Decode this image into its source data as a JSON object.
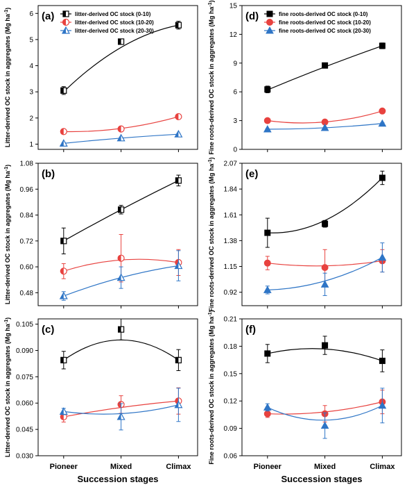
{
  "figure": {
    "x_title": "Succession stages",
    "x_categories": [
      "Pioneer",
      "Mixed",
      "Climax"
    ]
  },
  "chart_data": [
    {
      "panel": "(a)",
      "type": "line",
      "ylabel": "Litter-derived OC stock in aggregates (Mg ha⁻¹)",
      "ylim": [
        0.8,
        6.3
      ],
      "yticks": [
        1,
        2,
        3,
        4,
        5,
        6
      ],
      "categories": [
        "Pioneer",
        "Mixed",
        "Climax"
      ],
      "legend": "top-left",
      "marker_style": "open",
      "series": [
        {
          "name": "litter-derived OC stock (0-10)",
          "color": "#000000",
          "marker": "square",
          "values": [
            3.05,
            4.92,
            5.55
          ],
          "errors": [
            0.15,
            0.08,
            0.15
          ],
          "fit": [
            3.0,
            4.7,
            5.55
          ]
        },
        {
          "name": "litter-derived OC stock (10-20)",
          "color": "#e8423f",
          "marker": "circle",
          "values": [
            1.48,
            1.58,
            2.05
          ],
          "errors": [
            0.04,
            0.04,
            0.05
          ],
          "fit": [
            1.48,
            1.6,
            2.05
          ]
        },
        {
          "name": "litter-derived OC stock (20-30)",
          "color": "#2e75c6",
          "marker": "triangle",
          "values": [
            1.03,
            1.23,
            1.38
          ],
          "errors": [
            0.03,
            0.04,
            0.03
          ],
          "fit": [
            1.03,
            1.23,
            1.38
          ]
        }
      ]
    },
    {
      "panel": "(d)",
      "type": "line",
      "ylabel": "Fine roots-derived OC stock in aggregates (Mg ha⁻¹)",
      "ylim": [
        0,
        15
      ],
      "yticks": [
        0,
        3,
        6,
        9,
        12,
        15
      ],
      "categories": [
        "Pioneer",
        "Mixed",
        "Climax"
      ],
      "legend": "top-left",
      "marker_style": "filled",
      "series": [
        {
          "name": "fine roots-derived OC stock (0-10)",
          "color": "#000000",
          "marker": "square",
          "values": [
            6.25,
            8.75,
            10.8
          ],
          "errors": [
            0.35,
            0.15,
            0.3
          ],
          "fit": [
            6.2,
            8.6,
            10.8
          ]
        },
        {
          "name": "fine roots-derived OC stock (10-20)",
          "color": "#e8423f",
          "marker": "circle",
          "values": [
            3.0,
            2.85,
            4.0
          ],
          "errors": [
            0.08,
            0.08,
            0.1
          ],
          "fit": [
            3.0,
            2.85,
            4.0
          ]
        },
        {
          "name": "fine roots-derived OC stock (20-30)",
          "color": "#2e75c6",
          "marker": "triangle",
          "values": [
            2.1,
            2.25,
            2.7
          ],
          "errors": [
            0.05,
            0.05,
            0.08
          ],
          "fit": [
            2.1,
            2.25,
            2.7
          ]
        }
      ]
    },
    {
      "panel": "(b)",
      "type": "line",
      "ylabel": "Litter-derived OC stock in aggregates (Mg ha⁻¹)",
      "ylim": [
        0.42,
        1.08
      ],
      "yticks": [
        0.48,
        0.6,
        0.72,
        0.84,
        0.96,
        1.08
      ],
      "ytick_labels": [
        "0.48",
        "0.60",
        "0.72",
        "0.84",
        "0.96",
        "1.08"
      ],
      "categories": [
        "Pioneer",
        "Mixed",
        "Climax"
      ],
      "marker_style": "open",
      "series": [
        {
          "color": "#000000",
          "marker": "square",
          "values": [
            0.72,
            0.865,
            1.0
          ],
          "errors": [
            0.06,
            0.02,
            0.025
          ],
          "fit": [
            0.72,
            0.865,
            1.0
          ]
        },
        {
          "color": "#e8423f",
          "marker": "circle",
          "values": [
            0.58,
            0.64,
            0.62
          ],
          "errors": [
            0.035,
            0.11,
            0.06
          ],
          "fit": [
            0.58,
            0.632,
            0.62
          ]
        },
        {
          "color": "#2e75c6",
          "marker": "triangle",
          "values": [
            0.465,
            0.55,
            0.605
          ],
          "errors": [
            0.02,
            0.05,
            0.07
          ],
          "fit": [
            0.465,
            0.55,
            0.605
          ]
        }
      ]
    },
    {
      "panel": "(e)",
      "type": "line",
      "ylabel": "Fine roots-derived OC stock in aggregates (Mg ha⁻¹)",
      "ylim": [
        0.8,
        2.07
      ],
      "yticks": [
        0.92,
        1.15,
        1.38,
        1.61,
        1.84,
        2.07
      ],
      "ytick_labels": [
        "0.92",
        "1.15",
        "1.38",
        "1.61",
        "1.84",
        "2.07"
      ],
      "categories": [
        "Pioneer",
        "Mixed",
        "Climax"
      ],
      "marker_style": "filled",
      "series": [
        {
          "color": "#000000",
          "marker": "square",
          "values": [
            1.45,
            1.53,
            1.94
          ],
          "errors": [
            0.13,
            0.03,
            0.06
          ],
          "fit": [
            1.45,
            1.56,
            1.94
          ]
        },
        {
          "color": "#e8423f",
          "marker": "circle",
          "values": [
            1.18,
            1.14,
            1.2
          ],
          "errors": [
            0.06,
            0.16,
            0.1
          ],
          "fit": [
            1.18,
            1.155,
            1.2
          ]
        },
        {
          "color": "#2e75c6",
          "marker": "triangle",
          "values": [
            0.94,
            0.99,
            1.23
          ],
          "errors": [
            0.035,
            0.1,
            0.13
          ],
          "fit": [
            0.94,
            1.02,
            1.23
          ]
        }
      ]
    },
    {
      "panel": "(c)",
      "type": "line",
      "ylabel": "Litter-derived OC stock in aggregates (Mg ha⁻¹)",
      "ylim": [
        0.03,
        0.108
      ],
      "yticks": [
        0.03,
        0.045,
        0.06,
        0.075,
        0.09,
        0.105
      ],
      "ytick_labels": [
        "0.030",
        "0.045",
        "0.060",
        "0.075",
        "0.090",
        "0.105"
      ],
      "categories": [
        "Pioneer",
        "Mixed",
        "Climax"
      ],
      "marker_style": "open",
      "series": [
        {
          "color": "#000000",
          "marker": "square",
          "values": [
            0.0845,
            0.102,
            0.0845
          ],
          "errors": [
            0.005,
            0.006,
            0.006
          ],
          "fit": [
            0.0845,
            0.096,
            0.0845
          ]
        },
        {
          "color": "#e8423f",
          "marker": "circle",
          "values": [
            0.0522,
            0.0592,
            0.0612
          ],
          "errors": [
            0.003,
            0.005,
            0.0075
          ],
          "fit": [
            0.0522,
            0.0575,
            0.0612
          ]
        },
        {
          "color": "#2e75c6",
          "marker": "triangle",
          "values": [
            0.0552,
            0.0522,
            0.059
          ],
          "errors": [
            0.0018,
            0.0075,
            0.0095
          ],
          "fit": [
            0.0552,
            0.054,
            0.059
          ]
        }
      ]
    },
    {
      "panel": "(f)",
      "type": "line",
      "ylabel": "Fine roots-derived OC stock in aggregates (Mg ha⁻¹)",
      "ylim": [
        0.06,
        0.21
      ],
      "yticks": [
        0.06,
        0.09,
        0.12,
        0.15,
        0.18,
        0.21
      ],
      "ytick_labels": [
        "0.06",
        "0.09",
        "0.12",
        "0.15",
        "0.18",
        "0.21"
      ],
      "categories": [
        "Pioneer",
        "Mixed",
        "Climax"
      ],
      "marker_style": "filled",
      "series": [
        {
          "color": "#000000",
          "marker": "square",
          "values": [
            0.172,
            0.181,
            0.164
          ],
          "errors": [
            0.01,
            0.01,
            0.012
          ],
          "fit": [
            0.172,
            0.177,
            0.164
          ]
        },
        {
          "color": "#e8423f",
          "marker": "circle",
          "values": [
            0.106,
            0.106,
            0.119
          ],
          "errors": [
            0.004,
            0.009,
            0.013
          ],
          "fit": [
            0.106,
            0.108,
            0.119
          ]
        },
        {
          "color": "#2e75c6",
          "marker": "triangle",
          "values": [
            0.113,
            0.093,
            0.115
          ],
          "errors": [
            0.004,
            0.014,
            0.019
          ],
          "fit": [
            0.113,
            0.099,
            0.115
          ]
        }
      ]
    }
  ]
}
